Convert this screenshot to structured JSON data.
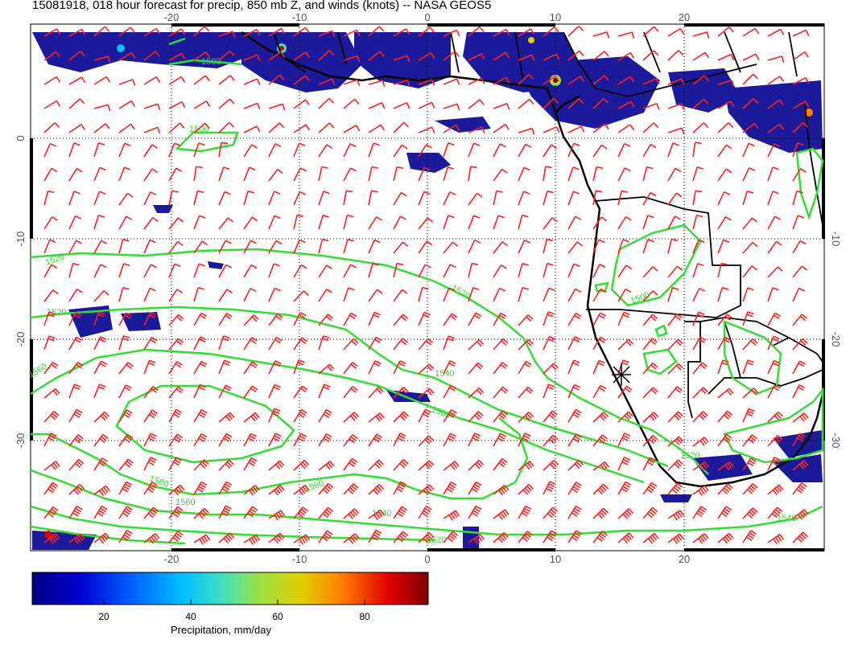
{
  "title": "15081918, 018 hour forecast for precip, 850 mb Z, and winds (knots) -- NASA GEOS5",
  "map": {
    "lon_ticks": [
      "-20",
      "-10",
      "0",
      "10",
      "20"
    ],
    "lat_ticks_left": [
      "0",
      "-10",
      "-20",
      "-30"
    ],
    "lat_ticks_right": [
      "-10",
      "-20",
      "-30"
    ],
    "contour_labels": [
      "1500",
      "1500",
      "1520",
      "1520",
      "1520",
      "1540",
      "1560",
      "1580",
      "1560",
      "1560",
      "1540",
      "1520",
      "1540",
      "1500",
      "1520",
      "1560"
    ],
    "marker": "storm-symbol"
  },
  "colorbar": {
    "label": "Precipitation, mm/day",
    "ticks": [
      "20",
      "40",
      "60",
      "80"
    ],
    "colors": [
      "#000080",
      "#0000d0",
      "#0060ff",
      "#00c0ff",
      "#40e0c0",
      "#a0e040",
      "#e0d000",
      "#ff8000",
      "#e00000",
      "#800000"
    ]
  },
  "colors": {
    "contour": "#33dd33",
    "wind_barb": "#ff2020",
    "precip_heavy": "#1a1a9a",
    "coastline": "#000000"
  }
}
